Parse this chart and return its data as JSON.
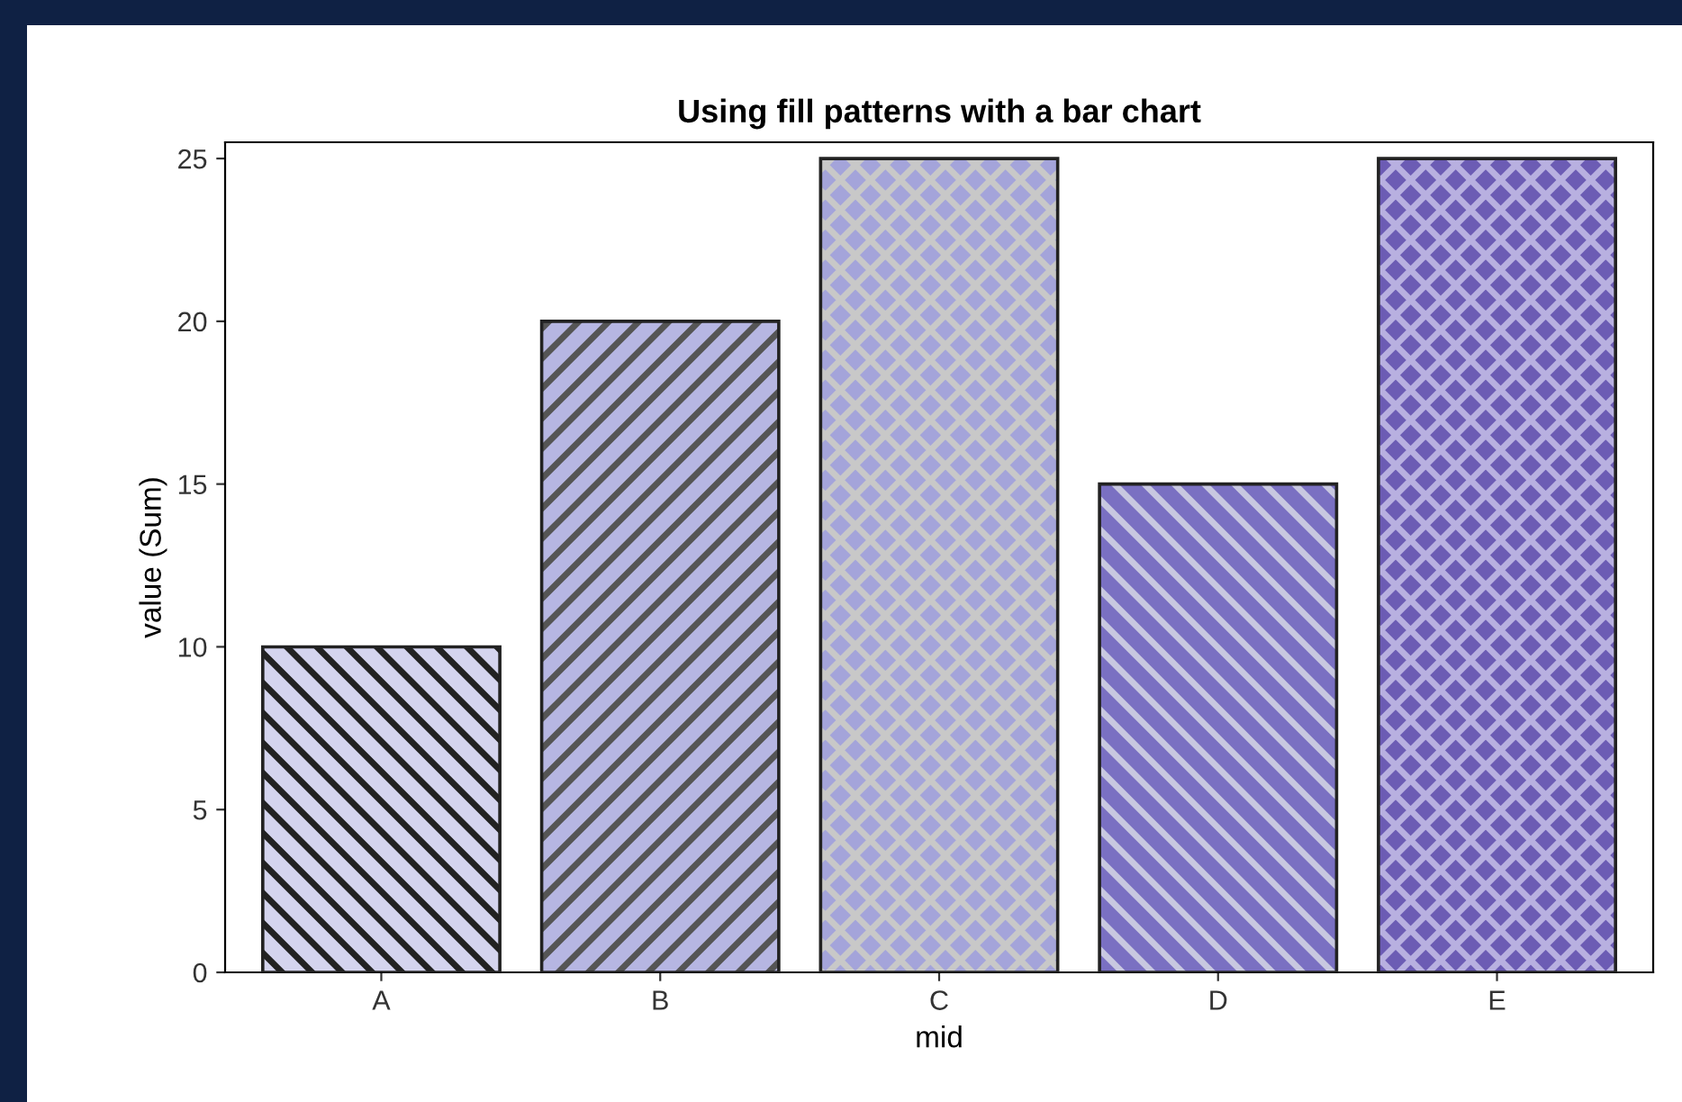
{
  "chart_data": {
    "type": "bar",
    "title": "Using fill patterns with a bar chart",
    "xlabel": "mid",
    "ylabel": "value (Sum)",
    "categories": [
      "A",
      "B",
      "C",
      "D",
      "E"
    ],
    "values": [
      10,
      20,
      25,
      15,
      25
    ],
    "colors": [
      "#d4d4ee",
      "#b6b6e2",
      "#a4a4da",
      "#7a70c2",
      "#6c5cb4"
    ],
    "ylim": [
      0,
      25.5
    ],
    "yticks": [
      0,
      5,
      10,
      15,
      20,
      25
    ],
    "grid": false
  }
}
